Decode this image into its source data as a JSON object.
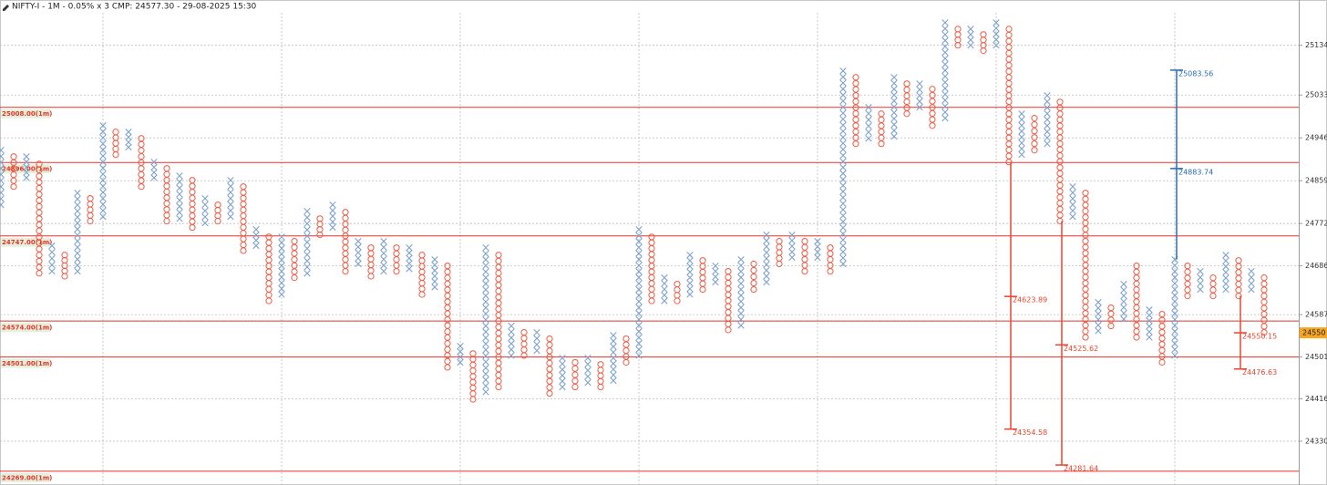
{
  "chart_data": {
    "type": "pointfigure",
    "title": "NIFTY-I - 1M - 0.05% x 3 CMP: 24577.30 - 29-08-2025 15:30",
    "first_column": "X",
    "x_color": "#7fa3cf",
    "o_color": "#ee5a44",
    "grid": true,
    "ylim": [
      24241,
      25226
    ],
    "yticks": [
      25134,
      25033,
      24946,
      24859,
      24772,
      24686,
      24587,
      24501,
      24416,
      24330
    ],
    "columns": {
      "high": [
        24921,
        24908,
        24908,
        24893,
        24727,
        24708,
        24834,
        24823,
        24971,
        24958,
        24958,
        24945,
        24897,
        24884,
        24869,
        24860,
        24823,
        24810,
        24860,
        24847,
        24760,
        24745,
        24745,
        24736,
        24797,
        24782,
        24810,
        24795,
        24736,
        24723,
        24736,
        24723,
        24723,
        24708,
        24699,
        24686,
        24523,
        24508,
        24723,
        24708,
        24564,
        24551,
        24551,
        24538,
        24499,
        24490,
        24499,
        24486,
        24545,
        24538,
        24760,
        24745,
        24662,
        24649,
        24708,
        24697,
        24686,
        24675,
        24699,
        24690,
        24749,
        24736,
        24749,
        24736,
        24736,
        24723,
        25082,
        25069,
        25008,
        24995,
        25069,
        25056,
        25056,
        25045,
        25180,
        25167,
        25167,
        25156,
        25180,
        25167,
        24995,
        24986,
        25032,
        25019,
        24847,
        24834,
        24612,
        24601,
        24649,
        24686,
        24597,
        24588,
        24699,
        24686,
        24675,
        24662,
        24708,
        24697,
        24675,
        24662
      ],
      "low": [
        24810,
        24847,
        24865,
        24671,
        24675,
        24665,
        24675,
        24777,
        24786,
        24912,
        24927,
        24847,
        24865,
        24777,
        24782,
        24764,
        24773,
        24777,
        24786,
        24717,
        24727,
        24615,
        24628,
        24662,
        24671,
        24749,
        24764,
        24675,
        24690,
        24665,
        24675,
        24675,
        24680,
        24628,
        24643,
        24480,
        24490,
        24415,
        24430,
        24440,
        24504,
        24504,
        24514,
        24427,
        24440,
        24440,
        24449,
        24440,
        24453,
        24490,
        24504,
        24615,
        24615,
        24615,
        24628,
        24638,
        24653,
        24556,
        24565,
        24638,
        24653,
        24690,
        24703,
        24675,
        24703,
        24675,
        24690,
        24934,
        24945,
        24934,
        24949,
        24995,
        25008,
        24971,
        24986,
        25134,
        25134,
        25123,
        25134,
        24897,
        24912,
        24921,
        24934,
        24777,
        24786,
        24541,
        24554,
        24564,
        24578,
        24541,
        24541,
        24490,
        24504,
        24625,
        24638,
        24625,
        24638,
        24625,
        24638,
        24551
      ]
    },
    "levels_color": "#e8332a",
    "levels": [
      {
        "value": 25008,
        "label": "25008.00(1m)"
      },
      {
        "value": 24896,
        "label": "24896.00(1m)"
      },
      {
        "value": 24747,
        "label": "24747.00(1m)"
      },
      {
        "value": 24574,
        "label": "24574.00(1m)"
      },
      {
        "value": 24501,
        "label": "24501.00(1m)"
      },
      {
        "value": 24269,
        "label": "24269.00(1m)"
      }
    ],
    "targets": [
      {
        "column": 79,
        "color": "#e8452f",
        "values": [
          24623.89,
          24354.58
        ]
      },
      {
        "column": 83,
        "color": "#e8452f",
        "values": [
          24525.62,
          24281.64
        ]
      },
      {
        "column": 92,
        "color": "#2c6cb0",
        "values": [
          24883.74,
          25083.56
        ]
      },
      {
        "column": 97,
        "color": "#e8452f",
        "values": [
          24550.15,
          24476.63
        ]
      }
    ],
    "price_label": 24550,
    "price_color": "#f5a623"
  }
}
